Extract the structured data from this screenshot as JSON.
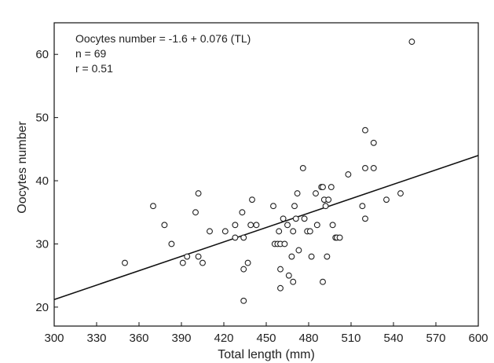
{
  "chart_data": {
    "type": "scatter",
    "title": "",
    "xlabel": "Total length (mm)",
    "ylabel": "Oocytes number",
    "xlim": [
      300,
      600
    ],
    "ylim": [
      17,
      65
    ],
    "x_ticks": [
      300,
      330,
      360,
      390,
      420,
      450,
      480,
      510,
      540,
      570,
      600
    ],
    "y_ticks": [
      20,
      30,
      40,
      50,
      60
    ],
    "grid": false,
    "legend": "none",
    "annotations": [
      "Oocytes number = -1.6 + 0.076 (TL)",
      "n = 69",
      "r = 0.51"
    ],
    "regression": {
      "intercept": -1.6,
      "slope": 0.076
    },
    "series": [
      {
        "marker": "open-circle",
        "color": "#222222",
        "points": [
          {
            "x": 350,
            "y": 27
          },
          {
            "x": 370,
            "y": 36
          },
          {
            "x": 378,
            "y": 33
          },
          {
            "x": 383,
            "y": 30
          },
          {
            "x": 391,
            "y": 27
          },
          {
            "x": 394,
            "y": 28
          },
          {
            "x": 400,
            "y": 35
          },
          {
            "x": 402,
            "y": 38
          },
          {
            "x": 402,
            "y": 28
          },
          {
            "x": 405,
            "y": 27
          },
          {
            "x": 410,
            "y": 32
          },
          {
            "x": 421,
            "y": 32
          },
          {
            "x": 428,
            "y": 31
          },
          {
            "x": 428,
            "y": 33
          },
          {
            "x": 433,
            "y": 35
          },
          {
            "x": 434,
            "y": 31
          },
          {
            "x": 434,
            "y": 26
          },
          {
            "x": 434,
            "y": 21
          },
          {
            "x": 437,
            "y": 27
          },
          {
            "x": 439,
            "y": 33
          },
          {
            "x": 440,
            "y": 37
          },
          {
            "x": 443,
            "y": 33
          },
          {
            "x": 455,
            "y": 36
          },
          {
            "x": 456,
            "y": 30
          },
          {
            "x": 458,
            "y": 30
          },
          {
            "x": 459,
            "y": 32
          },
          {
            "x": 460,
            "y": 30
          },
          {
            "x": 460,
            "y": 26
          },
          {
            "x": 460,
            "y": 23
          },
          {
            "x": 462,
            "y": 34
          },
          {
            "x": 463,
            "y": 30
          },
          {
            "x": 465,
            "y": 33
          },
          {
            "x": 466,
            "y": 25
          },
          {
            "x": 468,
            "y": 28
          },
          {
            "x": 469,
            "y": 32
          },
          {
            "x": 469,
            "y": 24
          },
          {
            "x": 470,
            "y": 36
          },
          {
            "x": 471,
            "y": 34
          },
          {
            "x": 472,
            "y": 38
          },
          {
            "x": 473,
            "y": 29
          },
          {
            "x": 476,
            "y": 42
          },
          {
            "x": 477,
            "y": 34
          },
          {
            "x": 479,
            "y": 32
          },
          {
            "x": 481,
            "y": 32
          },
          {
            "x": 482,
            "y": 28
          },
          {
            "x": 485,
            "y": 38
          },
          {
            "x": 486,
            "y": 33
          },
          {
            "x": 489,
            "y": 39
          },
          {
            "x": 490,
            "y": 39
          },
          {
            "x": 490,
            "y": 24
          },
          {
            "x": 491,
            "y": 37
          },
          {
            "x": 492,
            "y": 36
          },
          {
            "x": 493,
            "y": 28
          },
          {
            "x": 494,
            "y": 37
          },
          {
            "x": 496,
            "y": 39
          },
          {
            "x": 497,
            "y": 33
          },
          {
            "x": 499,
            "y": 31
          },
          {
            "x": 500,
            "y": 31
          },
          {
            "x": 508,
            "y": 41
          },
          {
            "x": 518,
            "y": 36
          },
          {
            "x": 520,
            "y": 48
          },
          {
            "x": 520,
            "y": 42
          },
          {
            "x": 520,
            "y": 34
          },
          {
            "x": 526,
            "y": 46
          },
          {
            "x": 526,
            "y": 42
          },
          {
            "x": 535,
            "y": 37
          },
          {
            "x": 545,
            "y": 38
          },
          {
            "x": 553,
            "y": 62
          },
          {
            "x": 502,
            "y": 31
          }
        ]
      }
    ]
  }
}
